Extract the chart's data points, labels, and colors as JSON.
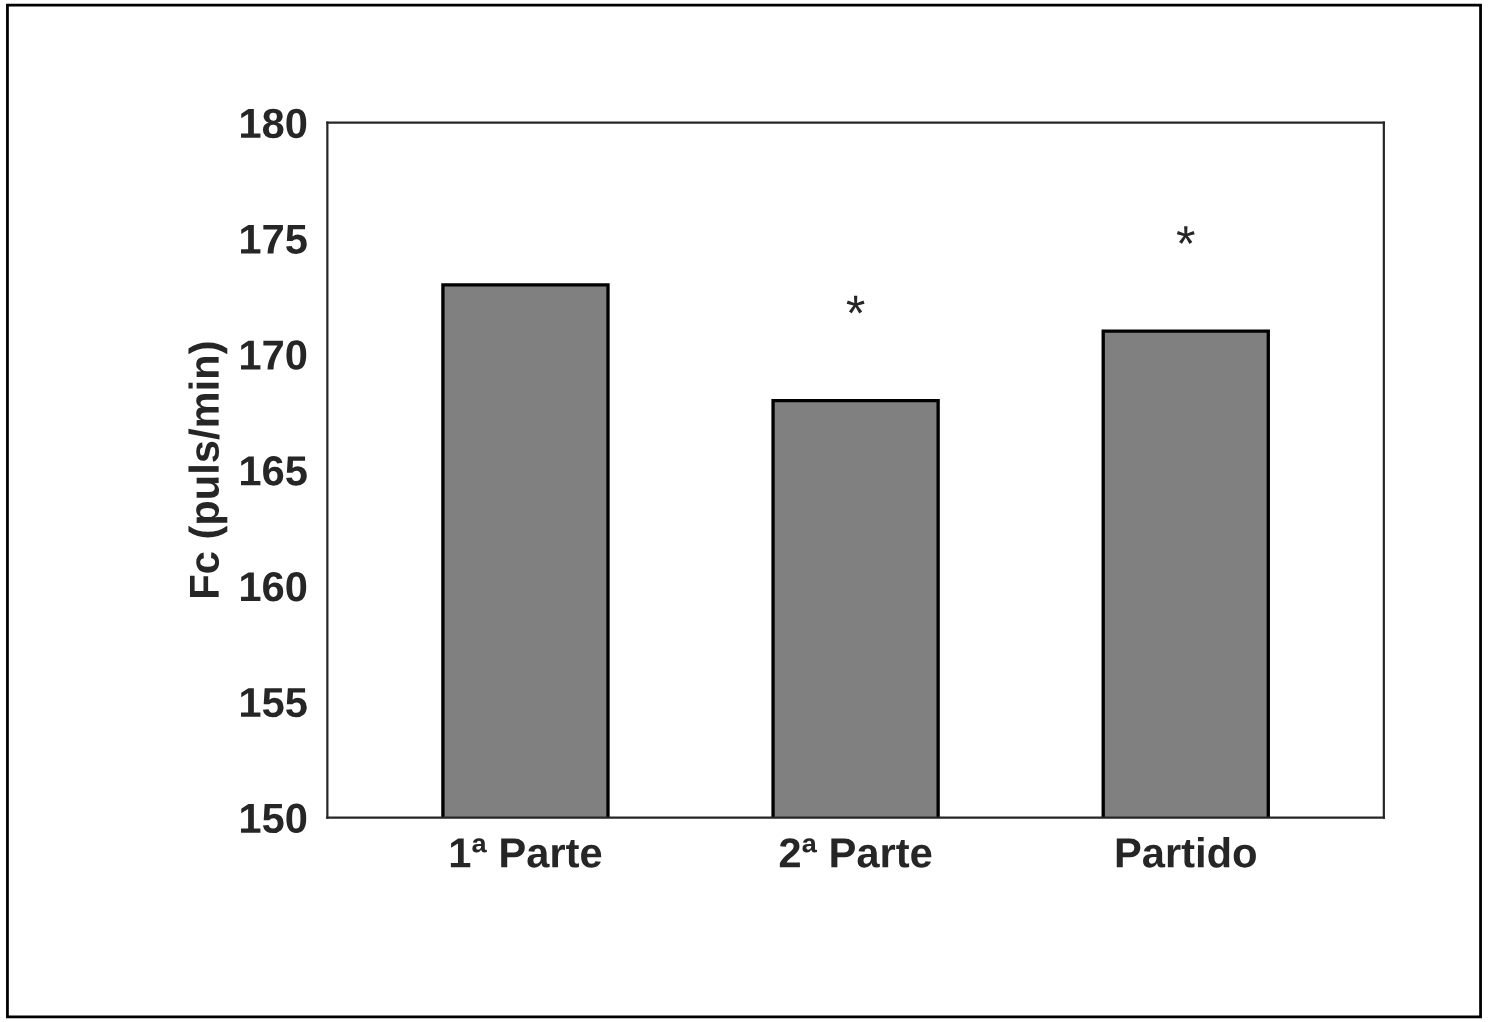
{
  "chart_data": {
    "type": "bar",
    "ylabel": "Fc (puls/min)",
    "categories": [
      "1ª Parte",
      "2ª Parte",
      "Partido"
    ],
    "values": [
      173,
      168,
      171
    ],
    "color": "#808080",
    "ylim": [
      150,
      180
    ],
    "yticks": [
      150,
      155,
      160,
      165,
      170,
      175,
      180
    ],
    "grid": false,
    "annotations": [
      {
        "text": "*",
        "x": "2ª Parte",
        "y": 168
      },
      {
        "text": "*",
        "x": "Partido",
        "y": 171
      }
    ]
  }
}
